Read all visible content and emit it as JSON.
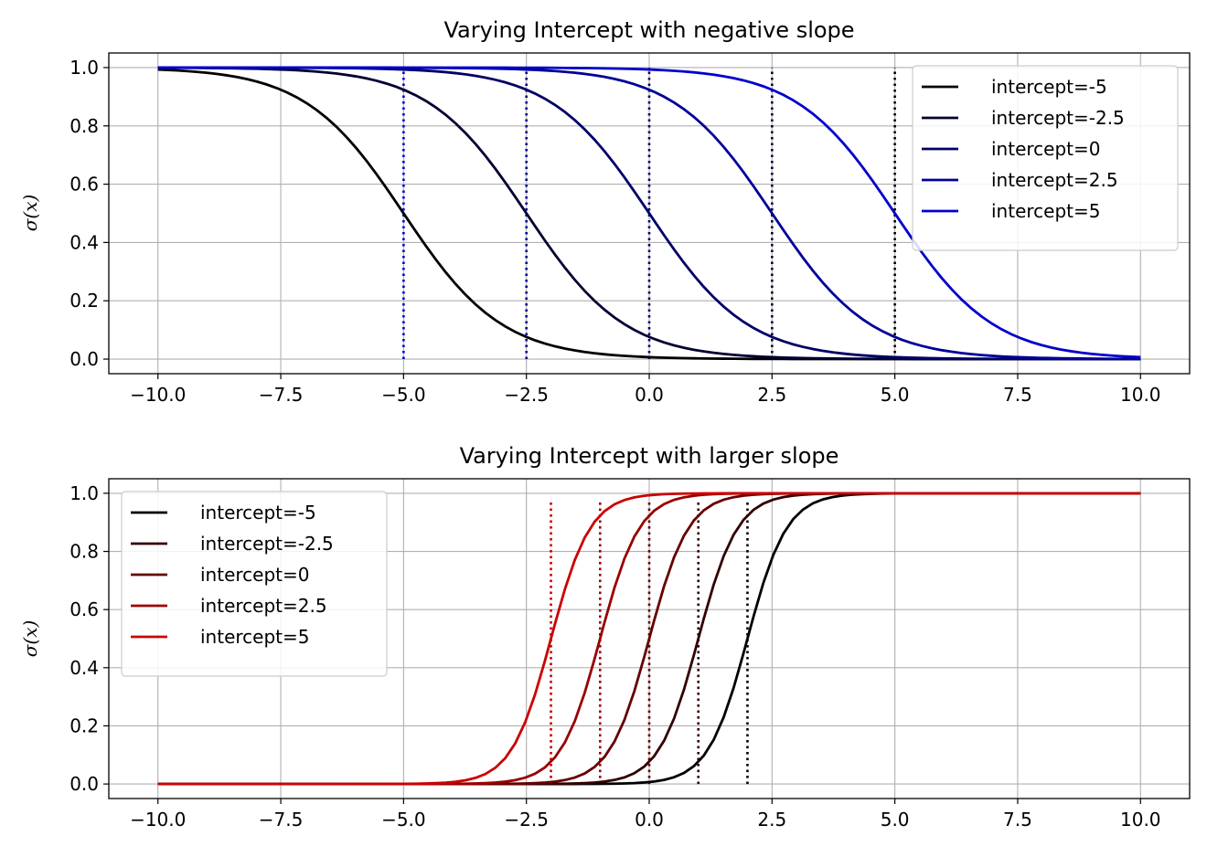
{
  "chart_data": [
    {
      "type": "line",
      "title": "Varying Intercept with negative slope",
      "xlabel": "",
      "ylabel": "σ(x)",
      "xlim": [
        -11,
        11
      ],
      "ylim": [
        -0.05,
        1.05
      ],
      "xticks": [
        "−10.0",
        "−7.5",
        "−5.0",
        "−2.5",
        "0.0",
        "2.5",
        "5.0",
        "7.5",
        "10.0"
      ],
      "xtick_values": [
        -10,
        -7.5,
        -5,
        -2.5,
        0,
        2.5,
        5,
        7.5,
        10
      ],
      "yticks": [
        "0.0",
        "0.2",
        "0.4",
        "0.6",
        "0.8",
        "1.0"
      ],
      "ytick_values": [
        0,
        0.2,
        0.4,
        0.6,
        0.8,
        1.0
      ],
      "grid": true,
      "legend_position": "top-right",
      "function": "sigmoid",
      "slope": -1,
      "x_range": [
        -10,
        10
      ],
      "series": [
        {
          "name": "intercept=-5",
          "intercept": -5,
          "midpoint": -5,
          "color": "#000000",
          "vline_color": "#0000cc"
        },
        {
          "name": "intercept=-2.5",
          "intercept": -2.5,
          "midpoint": -2.5,
          "color": "#000033",
          "vline_color": "#000099"
        },
        {
          "name": "intercept=0",
          "intercept": 0,
          "midpoint": 0,
          "color": "#000066",
          "vline_color": "#000066"
        },
        {
          "name": "intercept=2.5",
          "intercept": 2.5,
          "midpoint": 2.5,
          "color": "#000099",
          "vline_color": "#000033"
        },
        {
          "name": "intercept=5",
          "intercept": 5,
          "midpoint": 5,
          "color": "#0000cc",
          "vline_color": "#000000"
        }
      ]
    },
    {
      "type": "line",
      "title": "Varying Intercept with larger slope",
      "xlabel": "",
      "ylabel": "σ(x)",
      "xlim": [
        -11,
        11
      ],
      "ylim": [
        -0.05,
        1.05
      ],
      "xticks": [
        "−10.0",
        "−7.5",
        "−5.0",
        "−2.5",
        "0.0",
        "2.5",
        "5.0",
        "7.5",
        "10.0"
      ],
      "xtick_values": [
        -10,
        -7.5,
        -5,
        -2.5,
        0,
        2.5,
        5,
        7.5,
        10
      ],
      "yticks": [
        "0.0",
        "0.2",
        "0.4",
        "0.6",
        "0.8",
        "1.0"
      ],
      "ytick_values": [
        0,
        0.2,
        0.4,
        0.6,
        0.8,
        1.0
      ],
      "grid": true,
      "legend_position": "top-left",
      "function": "sigmoid",
      "slope": 2.5,
      "x_range": [
        -10,
        10
      ],
      "series": [
        {
          "name": "intercept=-5",
          "intercept": -5,
          "midpoint": 2,
          "color": "#000000",
          "vline_color": "#000000"
        },
        {
          "name": "intercept=-2.5",
          "intercept": -2.5,
          "midpoint": 1,
          "color": "#330000",
          "vline_color": "#330000"
        },
        {
          "name": "intercept=0",
          "intercept": 0,
          "midpoint": 0,
          "color": "#660000",
          "vline_color": "#660000"
        },
        {
          "name": "intercept=2.5",
          "intercept": 2.5,
          "midpoint": -1,
          "color": "#990000",
          "vline_color": "#990000"
        },
        {
          "name": "intercept=5",
          "intercept": 5,
          "midpoint": -2,
          "color": "#cc0000",
          "vline_color": "#cc0000"
        }
      ]
    }
  ]
}
